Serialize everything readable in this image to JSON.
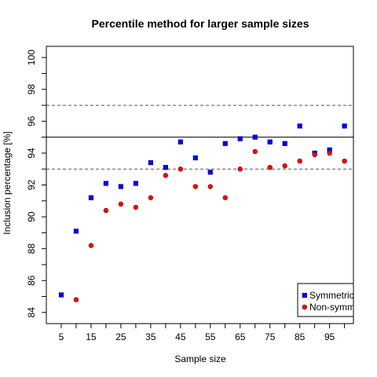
{
  "chart_data": {
    "type": "scatter",
    "title": "Percentile method for larger sample sizes",
    "xlabel": "Sample size",
    "ylabel": "Inclusion percentage [%]",
    "x": [
      5,
      10,
      15,
      20,
      25,
      30,
      35,
      40,
      45,
      50,
      55,
      60,
      65,
      70,
      75,
      80,
      85,
      90,
      95,
      100
    ],
    "x_tick_labels": [
      "5",
      "15",
      "25",
      "35",
      "45",
      "55",
      "65",
      "75",
      "85",
      "95"
    ],
    "x_tick_positions": [
      5,
      10,
      15,
      20,
      25,
      30,
      35,
      40,
      45,
      50,
      55,
      60,
      65,
      70,
      75,
      80,
      85,
      90,
      95,
      100
    ],
    "xlim": [
      0,
      103
    ],
    "y_ticks": [
      84,
      86,
      88,
      90,
      92,
      94,
      96,
      98,
      100
    ],
    "ylim": [
      83.3,
      100.7
    ],
    "grid": false,
    "reference_lines": [
      {
        "y": 95,
        "style": "solid"
      },
      {
        "y": 97,
        "style": "dashed"
      },
      {
        "y": 93,
        "style": "dashed"
      }
    ],
    "legend_placement": "bottom-right",
    "series": [
      {
        "name": "Symmetric",
        "color": "#0000ff",
        "marker": "square",
        "values": [
          85.1,
          89.1,
          91.2,
          92.1,
          91.9,
          92.1,
          93.4,
          93.1,
          94.7,
          93.7,
          92.8,
          94.6,
          94.9,
          95.0,
          94.7,
          94.6,
          95.7,
          94.0,
          94.2,
          95.7
        ]
      },
      {
        "name": "Non-symm",
        "color": "#ff0000",
        "marker": "circle",
        "values": [
          null,
          84.8,
          88.2,
          90.4,
          90.8,
          90.6,
          91.2,
          92.6,
          93.0,
          91.9,
          91.9,
          91.2,
          93.0,
          94.1,
          93.1,
          93.2,
          93.5,
          93.9,
          94.0,
          93.5
        ]
      }
    ],
    "extra_points": [
      {
        "series": "Non-symm",
        "x": 10,
        "y": 84.8
      }
    ]
  }
}
